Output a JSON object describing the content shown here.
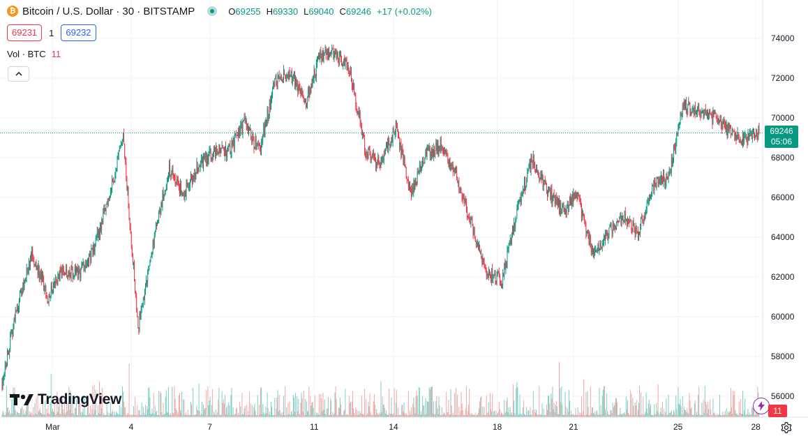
{
  "header": {
    "symbol_title": "Bitcoin / U.S. Dollar · 30 · BITSTAMP",
    "coin_glyph": "₿",
    "ohlc": [
      {
        "k": "O",
        "v": "69255"
      },
      {
        "k": "H",
        "v": "69330"
      },
      {
        "k": "L",
        "v": "69040"
      },
      {
        "k": "C",
        "v": "69246"
      }
    ],
    "change": "+17 (+0.02%)",
    "bid": "69231",
    "spread": "1",
    "ask": "69232"
  },
  "volume_legend": {
    "label": "Vol · BTC",
    "value": "11"
  },
  "branding": {
    "name": "TradingView"
  },
  "price_label": {
    "price": "69246",
    "countdown": "05:06"
  },
  "volume_label": "11",
  "icons": {
    "collapse": "chevron-up-icon",
    "bolt": "lightning-icon",
    "settings": "gear-icon",
    "logo": "tradingview-logo-icon"
  },
  "colors": {
    "up": "#089981",
    "down": "#f23645",
    "vol_up": "#7fcfc4",
    "vol_down": "#f7a6a6",
    "grid": "#f0f3fa",
    "text": "#131722"
  },
  "chart_data": {
    "type": "candlestick",
    "interval": "30",
    "y_axis": {
      "side": "right",
      "ticks": [
        56000,
        58000,
        60000,
        62000,
        64000,
        66000,
        68000,
        70000,
        72000,
        74000
      ],
      "range": [
        55200,
        75000
      ]
    },
    "x_axis": {
      "ticks": [
        "Mar",
        "4",
        "7",
        "11",
        "14",
        "18",
        "21",
        "25",
        "28"
      ]
    },
    "grid": true,
    "last_price": 69246,
    "close_path": [
      {
        "day": "Feb 29",
        "price": 56800
      },
      {
        "day": "Feb 29",
        "price": 60500
      },
      {
        "day": "Mar 1",
        "price": 63200
      },
      {
        "day": "Mar 1",
        "price": 61000
      },
      {
        "day": "Mar 2",
        "price": 62400
      },
      {
        "day": "Mar 3",
        "price": 62100
      },
      {
        "day": "Mar 4",
        "price": 63300
      },
      {
        "day": "Mar 4",
        "price": 65900
      },
      {
        "day": "Mar 5",
        "price": 68900
      },
      {
        "day": "Mar 5",
        "price": 59500
      },
      {
        "day": "Mar 5",
        "price": 63800
      },
      {
        "day": "Mar 6",
        "price": 67400
      },
      {
        "day": "Mar 7",
        "price": 66200
      },
      {
        "day": "Mar 8",
        "price": 67600
      },
      {
        "day": "Mar 8",
        "price": 68300
      },
      {
        "day": "Mar 9",
        "price": 68300
      },
      {
        "day": "Mar 10",
        "price": 69700
      },
      {
        "day": "Mar 11",
        "price": 68300
      },
      {
        "day": "Mar 11",
        "price": 71800
      },
      {
        "day": "Mar 12",
        "price": 72300
      },
      {
        "day": "Mar 12",
        "price": 70700
      },
      {
        "day": "Mar 13",
        "price": 73100
      },
      {
        "day": "Mar 14",
        "price": 73300
      },
      {
        "day": "Mar 14",
        "price": 72300
      },
      {
        "day": "Mar 15",
        "price": 68400
      },
      {
        "day": "Mar 15",
        "price": 67600
      },
      {
        "day": "Mar 16",
        "price": 69600
      },
      {
        "day": "Mar 17",
        "price": 66200
      },
      {
        "day": "Mar 17",
        "price": 68200
      },
      {
        "day": "Mar 18",
        "price": 68600
      },
      {
        "day": "Mar 18",
        "price": 67100
      },
      {
        "day": "Mar 19",
        "price": 64700
      },
      {
        "day": "Mar 19",
        "price": 62200
      },
      {
        "day": "Mar 20",
        "price": 61800
      },
      {
        "day": "Mar 20",
        "price": 65300
      },
      {
        "day": "Mar 21",
        "price": 67900
      },
      {
        "day": "Mar 21",
        "price": 66400
      },
      {
        "day": "Mar 22",
        "price": 65300
      },
      {
        "day": "Mar 22",
        "price": 66100
      },
      {
        "day": "Mar 23",
        "price": 63200
      },
      {
        "day": "Mar 23",
        "price": 64200
      },
      {
        "day": "Mar 24",
        "price": 65100
      },
      {
        "day": "Mar 24",
        "price": 64300
      },
      {
        "day": "Mar 25",
        "price": 66600
      },
      {
        "day": "Mar 25",
        "price": 67000
      },
      {
        "day": "Mar 26",
        "price": 70600
      },
      {
        "day": "Mar 26",
        "price": 70400
      },
      {
        "day": "Mar 27",
        "price": 70000
      },
      {
        "day": "Mar 27",
        "price": 69400
      },
      {
        "day": "Mar 28",
        "price": 68900
      },
      {
        "day": "Mar 28",
        "price": 69246
      }
    ]
  }
}
